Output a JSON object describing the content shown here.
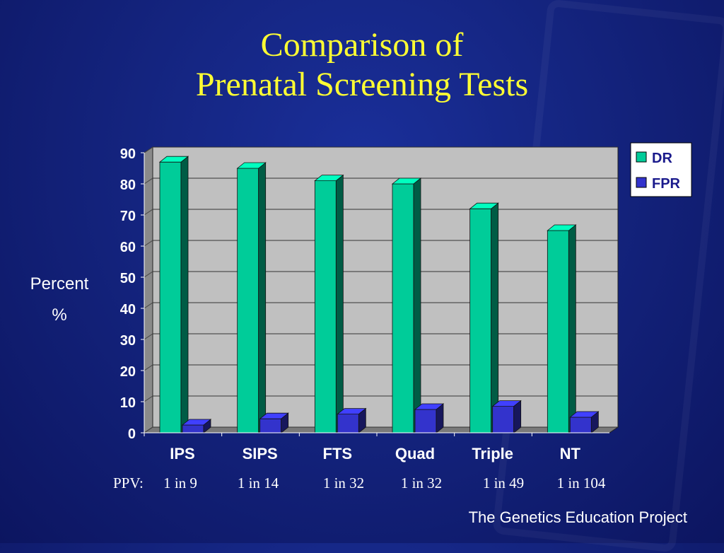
{
  "title_line1": "Comparison of",
  "title_line2": "Prenatal Screening Tests",
  "ylabel_line1": "Percent",
  "ylabel_line2": "%",
  "ppv_prefix": "PPV:",
  "ppv": [
    "1 in 9",
    "1 in 14",
    "1 in 32",
    "1 in 32",
    "1 in 49",
    "1 in 104"
  ],
  "footer": "The Genetics Education Project",
  "chart_data": {
    "type": "bar",
    "categories": [
      "IPS",
      "SIPS",
      "FTS",
      "Quad",
      "Triple",
      "NT"
    ],
    "series": [
      {
        "name": "DR",
        "values": [
          87,
          85,
          81,
          80,
          72,
          65
        ],
        "color": "#00cc99"
      },
      {
        "name": "FPR",
        "values": [
          2.5,
          4.5,
          6,
          7.5,
          8.5,
          5
        ],
        "color": "#3333cc"
      }
    ],
    "yticks": [
      "0",
      "10",
      "20",
      "30",
      "40",
      "50",
      "60",
      "70",
      "80",
      "90"
    ],
    "ylim": [
      0,
      90
    ],
    "grid": true,
    "legend_position": "top-right",
    "plot_background": "#c0c0c0"
  }
}
